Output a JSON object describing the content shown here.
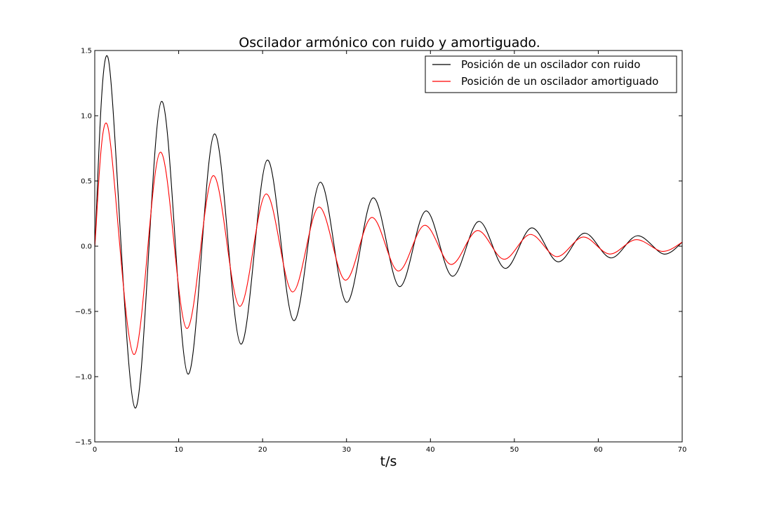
{
  "chart_data": {
    "type": "line",
    "title": "Oscilador armónico con ruido y amortiguado.",
    "xlabel": "t/s",
    "ylabel": "",
    "xlim": [
      0,
      70
    ],
    "ylim": [
      -1.5,
      1.5
    ],
    "x_ticks": [
      0,
      10,
      20,
      30,
      40,
      50,
      60,
      70
    ],
    "x_tick_labels": [
      "0",
      "10",
      "20",
      "30",
      "40",
      "50",
      "60",
      "70"
    ],
    "y_ticks": [
      -1.5,
      -1.0,
      -0.5,
      0.0,
      0.5,
      1.0,
      1.5
    ],
    "y_tick_labels": [
      "−1.5",
      "−1.0",
      "−0.5",
      "0.0",
      "0.5",
      "1.0",
      "1.5"
    ],
    "grid": false,
    "legend_position": "top-right",
    "series": [
      {
        "name": "Posición de un oscilador con ruido",
        "color": "#000000",
        "x": [
          0,
          1.6,
          4.8,
          7.95,
          11.1,
          14.25,
          17.4,
          20.55,
          23.7,
          26.85,
          30.0,
          33.15,
          36.3,
          39.45,
          42.6,
          45.75,
          48.9,
          52.05,
          55.2,
          58.35,
          61.5,
          64.65,
          67.8,
          70.0
        ],
        "y": [
          0.0,
          1.44,
          -1.24,
          1.11,
          -0.98,
          0.86,
          -0.75,
          0.66,
          -0.57,
          0.49,
          -0.43,
          0.37,
          -0.31,
          0.27,
          -0.23,
          0.19,
          -0.17,
          0.14,
          -0.12,
          0.1,
          -0.09,
          0.08,
          -0.06,
          0.03
        ]
      },
      {
        "name": "Posición de un oscilador amortiguado",
        "color": "#ff0000",
        "x": [
          0,
          1.5,
          4.65,
          7.8,
          10.95,
          14.1,
          17.25,
          20.4,
          23.55,
          26.7,
          29.85,
          33.0,
          36.15,
          39.3,
          42.45,
          45.6,
          48.75,
          51.9,
          55.05,
          58.2,
          61.35,
          64.5,
          67.65,
          70.0
        ],
        "y": [
          0.0,
          0.93,
          -0.83,
          0.72,
          -0.63,
          0.54,
          -0.46,
          0.4,
          -0.35,
          0.3,
          -0.26,
          0.22,
          -0.19,
          0.16,
          -0.14,
          0.12,
          -0.1,
          0.09,
          -0.08,
          0.07,
          -0.06,
          0.05,
          -0.04,
          0.03
        ]
      }
    ]
  }
}
